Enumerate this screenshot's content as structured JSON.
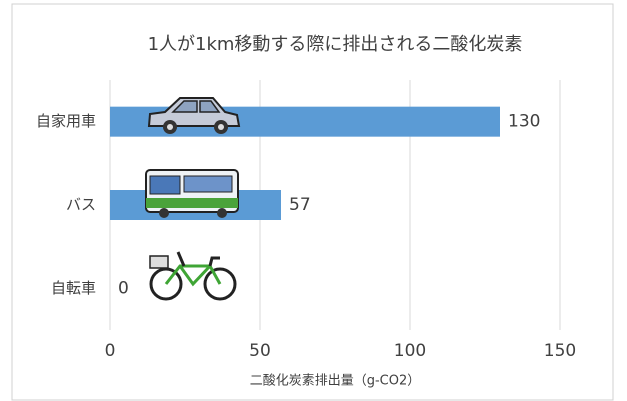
{
  "chart_data": {
    "type": "bar",
    "orientation": "horizontal",
    "title": "1人が1km移動する際に排出される二酸化炭素",
    "x_label": "二酸化炭素排出量（g-CO2）",
    "categories": [
      "自家用車",
      "バス",
      "自転車"
    ],
    "values": [
      130,
      57,
      0
    ],
    "color": "#5b9bd5",
    "xlim": [
      0,
      150
    ],
    "xticks": [
      0,
      50,
      100,
      150
    ],
    "grid": true
  }
}
